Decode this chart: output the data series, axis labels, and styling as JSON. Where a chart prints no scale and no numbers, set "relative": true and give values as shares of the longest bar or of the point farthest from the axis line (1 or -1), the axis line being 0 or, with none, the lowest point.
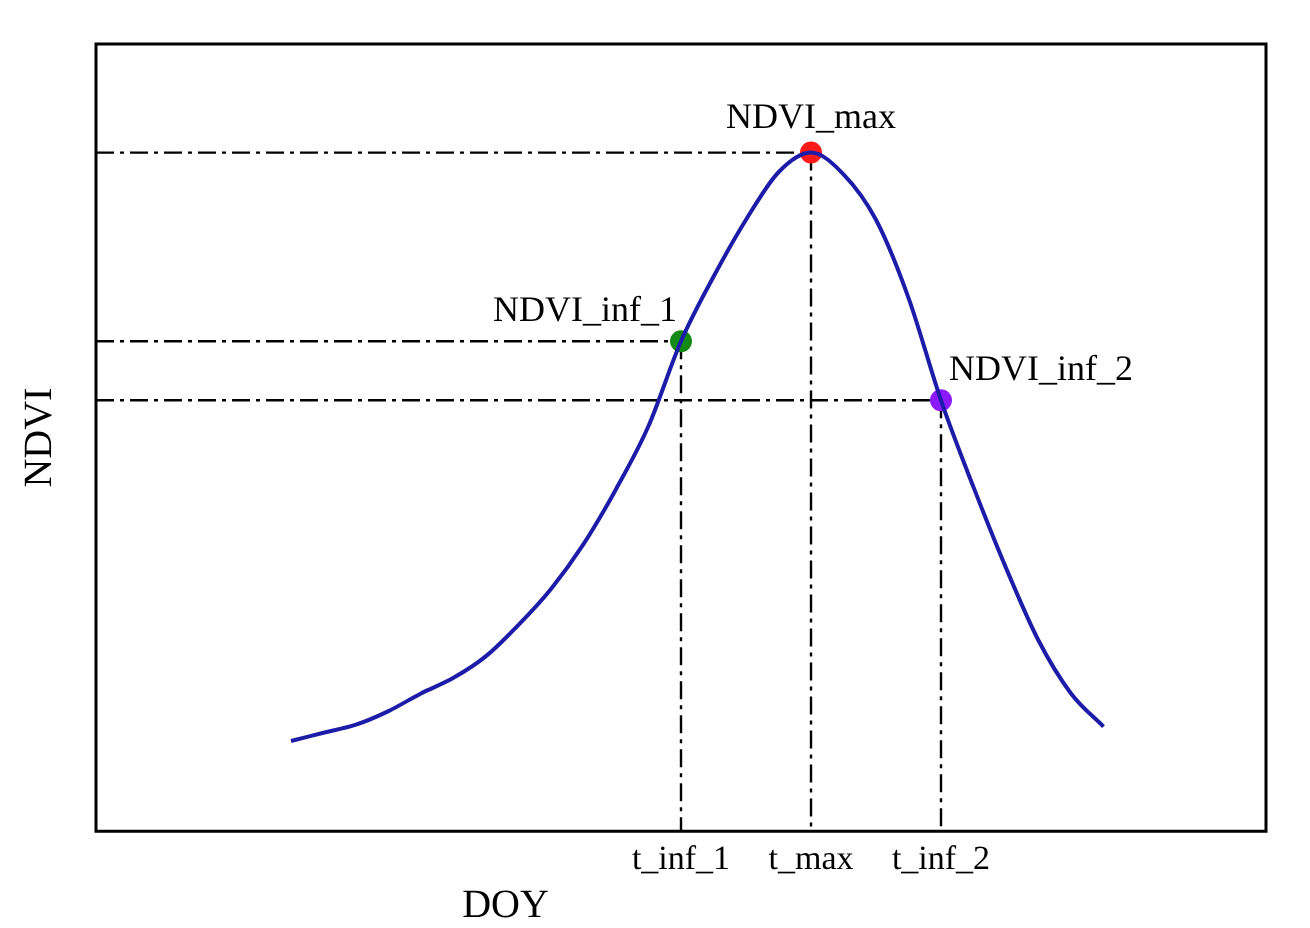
{
  "chart_data": {
    "type": "line",
    "relative": true,
    "xlabel": "DOY",
    "ylabel": "NDVI",
    "tick_labels": "x",
    "legend": false,
    "categories": [
      null,
      null,
      null,
      null,
      null,
      null,
      null,
      null,
      null,
      null,
      null,
      null,
      null,
      null,
      null,
      null,
      null,
      null,
      "t_inf_1",
      null,
      null,
      null,
      "t_max",
      null,
      null,
      null,
      "t_inf_2",
      null,
      null,
      null,
      null,
      null,
      null,
      null,
      null,
      null,
      null
    ],
    "series": [
      {
        "color": "#1c1ca8",
        "marker": "none",
        "values": [
          null,
          null,
          null,
          null,
          null,
          null,
          0.133,
          0.145,
          0.157,
          0.177,
          0.203,
          0.226,
          0.258,
          0.304,
          0.357,
          0.423,
          0.504,
          0.597,
          0.722,
          0.817,
          0.901,
          0.971,
          1,
          0.968,
          0.901,
          0.786,
          0.635,
          0.507,
          0.388,
          0.281,
          0.203,
          0.154,
          null,
          null,
          null,
          null,
          null
        ]
      },
      {
        "type": "scatter",
        "marker": "circle",
        "x": [
          "t_inf_1",
          "t_max",
          "t_inf_2"
        ],
        "values": [
          0.722,
          1,
          0.635
        ],
        "colors": [
          "#138a13",
          "#ff1a1a",
          "#8c1aff"
        ]
      }
    ],
    "annotations": [
      {
        "text": "NDVI_inf_1",
        "x": "t_inf_1",
        "y": 0.722
      },
      {
        "text": "NDVI_max",
        "x": "t_max",
        "y": 1
      },
      {
        "text": "NDVI_inf_2",
        "x": "t_inf_2",
        "y": 0.635
      }
    ]
  }
}
